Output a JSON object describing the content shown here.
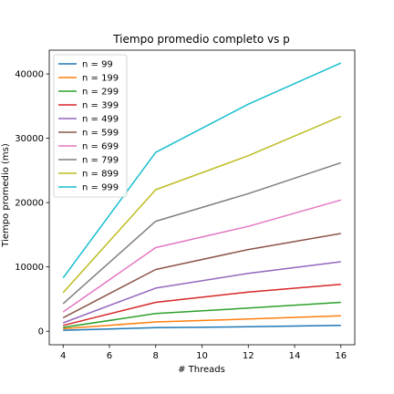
{
  "chart_data": {
    "type": "line",
    "title": "Tiempo promedio completo vs p",
    "xlabel": "# Threads",
    "ylabel": "Tiempo promedio (ms)",
    "x": [
      4,
      8,
      12,
      16
    ],
    "xlim": [
      3.4,
      16.6
    ],
    "ylim": [
      -2100,
      43700
    ],
    "xticks": [
      4,
      6,
      8,
      10,
      12,
      14,
      16
    ],
    "yticks": [
      0,
      10000,
      20000,
      30000,
      40000
    ],
    "grid": false,
    "legend_position": "top-left",
    "series": [
      {
        "name": "n = 99",
        "color": "#1f77b4",
        "values": [
          150,
          550,
          700,
          900
        ]
      },
      {
        "name": "n = 199",
        "color": "#ff7f0e",
        "values": [
          400,
          1450,
          1900,
          2400
        ]
      },
      {
        "name": "n = 299",
        "color": "#2ca02c",
        "values": [
          600,
          2750,
          3600,
          4500
        ]
      },
      {
        "name": "n = 399",
        "color": "#d62728",
        "values": [
          900,
          4500,
          6100,
          7300
        ]
      },
      {
        "name": "n = 499",
        "color": "#9467bd",
        "values": [
          1300,
          6700,
          9000,
          10800
        ]
      },
      {
        "name": "n = 599",
        "color": "#8c564b",
        "values": [
          2100,
          9600,
          12700,
          15200
        ]
      },
      {
        "name": "n = 699",
        "color": "#e377c2",
        "values": [
          3000,
          13000,
          16300,
          20400
        ]
      },
      {
        "name": "n = 799",
        "color": "#7f7f7f",
        "values": [
          4300,
          17100,
          21400,
          26200
        ]
      },
      {
        "name": "n = 899",
        "color": "#bcbd22",
        "values": [
          6000,
          22000,
          27300,
          33400
        ]
      },
      {
        "name": "n = 999",
        "color": "#17becf",
        "values": [
          8300,
          27800,
          35300,
          41700
        ]
      }
    ]
  }
}
